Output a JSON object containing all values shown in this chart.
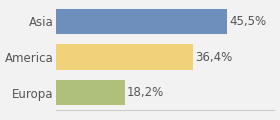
{
  "categories": [
    "Asia",
    "America",
    "Europa"
  ],
  "values": [
    45.5,
    36.4,
    18.2
  ],
  "labels": [
    "45,5%",
    "36,4%",
    "18,2%"
  ],
  "bar_colors": [
    "#6e8fbc",
    "#efd27a",
    "#afc07a"
  ],
  "background_color": "#f2f2f2",
  "xlim": [
    0,
    58
  ],
  "bar_height": 0.72,
  "label_fontsize": 8.5,
  "tick_fontsize": 8.5
}
